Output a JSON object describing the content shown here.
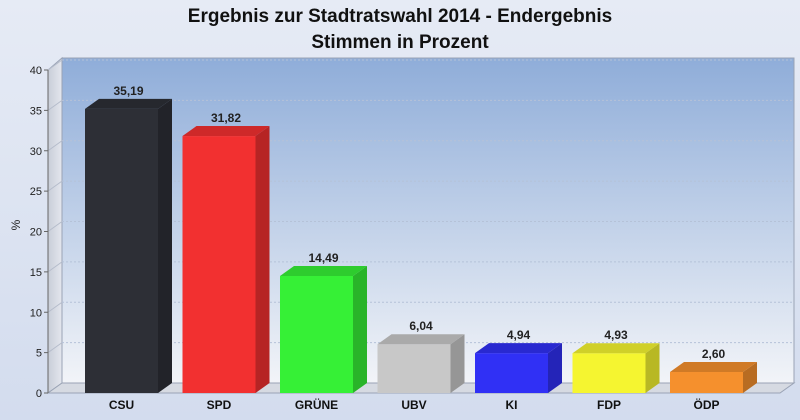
{
  "chart_data": {
    "type": "bar",
    "title": "Ergebnis zur Stadtratswahl 2014 - Endergebnis",
    "subtitle": "Stimmen in Prozent",
    "xlabel": "",
    "ylabel": "%",
    "ylim": [
      0,
      40
    ],
    "yticks": [
      0,
      5,
      10,
      15,
      20,
      25,
      30,
      35,
      40
    ],
    "categories": [
      "CSU",
      "SPD",
      "GRÜNE",
      "UBV",
      "KI",
      "FDP",
      "ÖDP"
    ],
    "values": [
      35.19,
      31.82,
      14.49,
      6.04,
      4.94,
      4.93,
      2.6
    ],
    "value_labels": [
      "35,19",
      "31,82",
      "14,49",
      "6,04",
      "4,94",
      "4,93",
      "2,60"
    ],
    "colors": [
      "#2d2f36",
      "#f23030",
      "#36f036",
      "#c8c8c8",
      "#3030f5",
      "#f5f530",
      "#f5902d"
    ],
    "grid": true,
    "legend": "none",
    "style": "3d-bar"
  }
}
